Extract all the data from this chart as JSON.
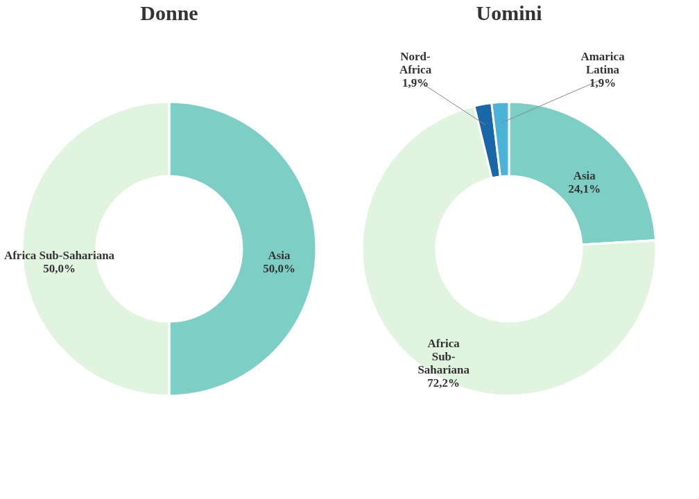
{
  "chart_data": [
    {
      "type": "donut",
      "title": "Donne",
      "categories": [
        "Asia",
        "Africa Sub-Sahariana"
      ],
      "values": [
        50.0,
        50.0
      ],
      "colors": [
        "#7dcfc6",
        "#e1f4e0"
      ],
      "value_labels": [
        "50,0%",
        "50,0%"
      ]
    },
    {
      "type": "donut",
      "title": "Uomini",
      "categories": [
        "Asia",
        "Africa Sub-Sahariana",
        "Nord-Africa",
        "Amarica Latina"
      ],
      "values": [
        24.1,
        72.2,
        1.9,
        1.9
      ],
      "colors": [
        "#7dcfc6",
        "#e1f4e0",
        "#1a67a8",
        "#4bb3d8"
      ],
      "value_labels": [
        "24,1%",
        "72,2%",
        "1,9%",
        "1,9%"
      ]
    }
  ]
}
